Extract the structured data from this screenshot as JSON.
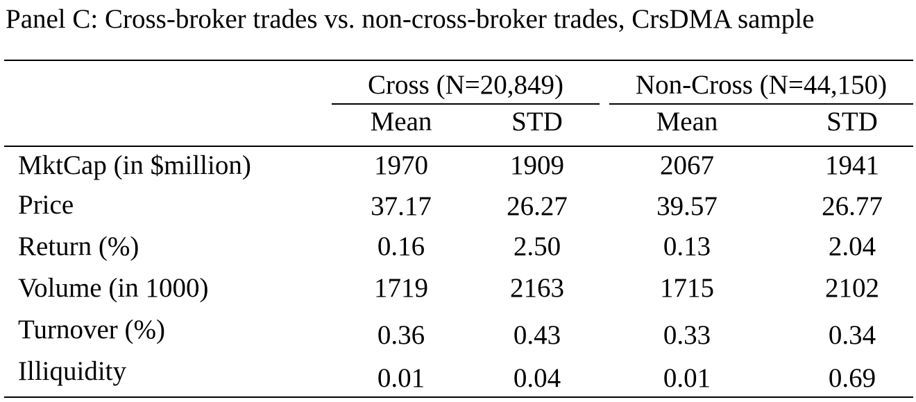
{
  "title": "Panel C: Cross-broker trades vs. non-cross-broker trades, CrsDMA sample",
  "groups": {
    "cross": "Cross (N=20,849)",
    "noncross": "Non-Cross (N=44,150)"
  },
  "subheaders": [
    "Mean",
    "STD",
    "Mean",
    "STD"
  ],
  "rows": [
    {
      "label": "MktCap (in $million)",
      "values": [
        "1970",
        "1909",
        "2067",
        "1941"
      ]
    },
    {
      "label": "Price",
      "values": [
        "37.17",
        "26.27",
        "39.57",
        "26.77"
      ]
    },
    {
      "label": "Return (%)",
      "values": [
        "0.16",
        "2.50",
        "0.13",
        "2.04"
      ]
    },
    {
      "label": "Volume (in 1000)",
      "values": [
        "1719",
        "2163",
        "1715",
        "2102"
      ]
    },
    {
      "label": "Turnover (%)",
      "values": [
        "0.36",
        "0.43",
        "0.33",
        "0.34"
      ]
    },
    {
      "label": "Illiquidity",
      "values": [
        "0.01",
        "0.04",
        "0.01",
        "0.69"
      ]
    }
  ]
}
